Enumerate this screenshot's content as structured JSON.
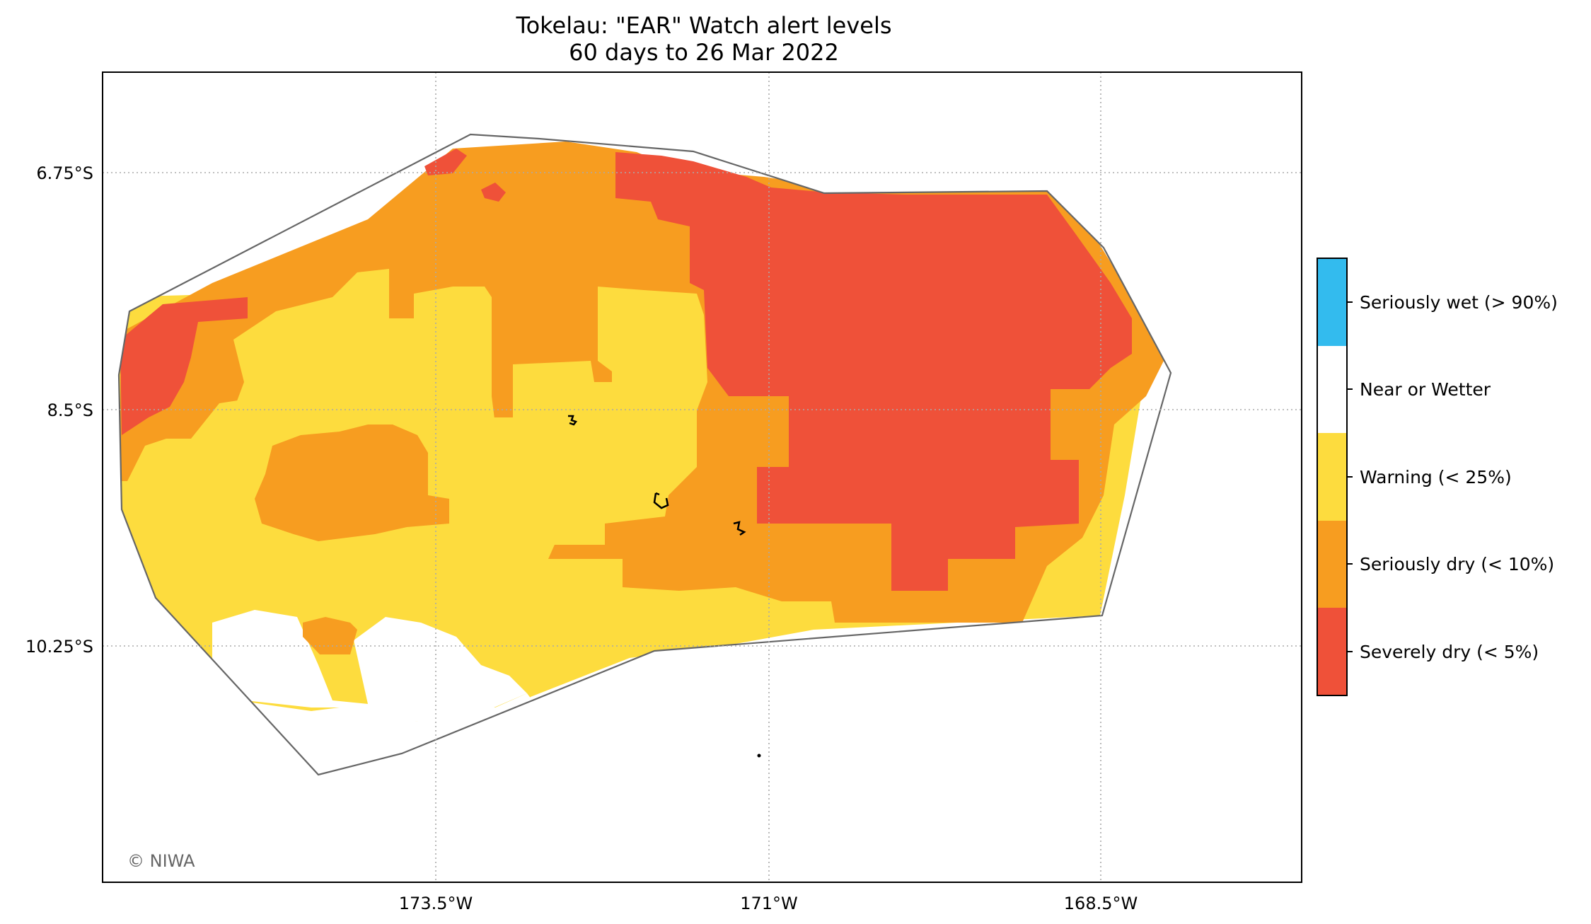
{
  "title_line1": "Tokelau: \"EAR\" Watch alert levels",
  "title_line2": "60 days to 26 Mar 2022",
  "latitude_labels": [
    "6.75°S",
    "8.5°S",
    "10.25°S"
  ],
  "longitude_labels": [
    "173.5°W",
    "171°W",
    "168.5°W"
  ],
  "credit": "© NIWA",
  "colors": {
    "seriously_wet": "#33bbee",
    "near_or_wetter": "#ffffff",
    "warning": "#fddc3e",
    "seriously_dry": "#f79d20",
    "severely_dry": "#ef5139",
    "outline": "#666666",
    "gridline": "#aaaaaa"
  },
  "legend": [
    {
      "label": "Seriously wet (> 90%)",
      "color": "#33bbee"
    },
    {
      "label": "Near or Wetter",
      "color": "#ffffff"
    },
    {
      "label": "Warning (< 25%)",
      "color": "#fddc3e"
    },
    {
      "label": "Seriously dry (< 10%)",
      "color": "#f79d20"
    },
    {
      "label": "Severely dry (< 5%)",
      "color": "#ef5139"
    }
  ]
}
